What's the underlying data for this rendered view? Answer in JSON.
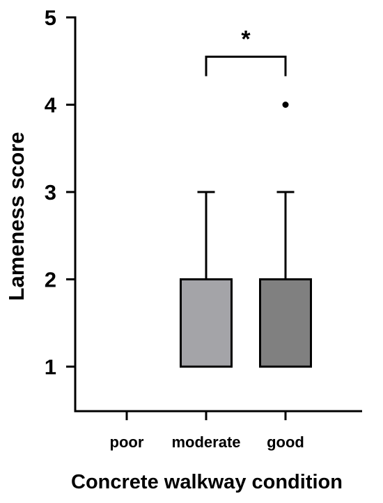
{
  "chart_data": {
    "type": "box",
    "xlabel": "Concrete walkway condition",
    "ylabel": "Lameness score",
    "ylim": [
      0.5,
      5
    ],
    "yticks": [
      1,
      2,
      3,
      4,
      5
    ],
    "grid": false,
    "categories": [
      "poor",
      "moderate",
      "good"
    ],
    "boxes": [
      {
        "category": "poor",
        "present": false
      },
      {
        "category": "moderate",
        "present": true,
        "q1": 1,
        "median": 1,
        "q3": 2,
        "whisker_low": 1,
        "whisker_high": 3,
        "outliers": [],
        "fill": "#a4a4a8"
      },
      {
        "category": "good",
        "present": true,
        "q1": 1,
        "median": 1,
        "q3": 2,
        "whisker_low": 1,
        "whisker_high": 3,
        "outliers": [
          4
        ],
        "fill": "#808080"
      }
    ],
    "annotations": [
      {
        "type": "significance",
        "from": "moderate",
        "to": "good",
        "level": 4.55,
        "text": "*"
      }
    ]
  }
}
